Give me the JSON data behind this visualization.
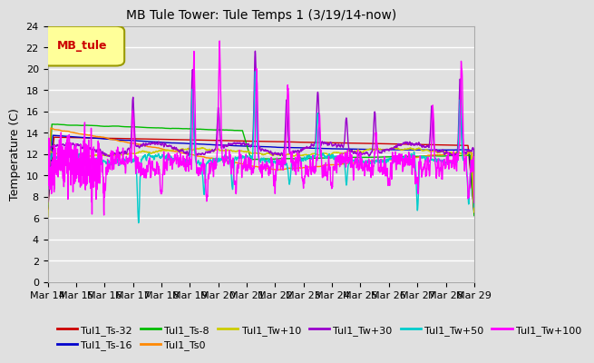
{
  "title": "MB Tule Tower: Tule Temps 1 (3/19/14-now)",
  "ylabel": "Temperature (C)",
  "ylim": [
    0,
    24
  ],
  "yticks": [
    0,
    2,
    4,
    6,
    8,
    10,
    12,
    14,
    16,
    18,
    20,
    22,
    24
  ],
  "x_label_dates": [
    "Mar 14",
    "Mar 15",
    "Mar 16",
    "Mar 17",
    "Mar 18",
    "Mar 19",
    "Mar 20",
    "Mar 21",
    "Mar 22",
    "Mar 23",
    "Mar 24",
    "Mar 25",
    "Mar 26",
    "Mar 27",
    "Mar 28",
    "Mar 29"
  ],
  "background_color": "#e0e0e0",
  "plot_bg_color": "#e0e0e0",
  "grid_color": "#ffffff",
  "series": [
    {
      "name": "Tul1_Ts-32",
      "color": "#cc0000"
    },
    {
      "name": "Tul1_Ts-16",
      "color": "#0000cc"
    },
    {
      "name": "Tul1_Ts-8",
      "color": "#00bb00"
    },
    {
      "name": "Tul1_Ts0",
      "color": "#ff8800"
    },
    {
      "name": "Tul1_Tw+10",
      "color": "#cccc00"
    },
    {
      "name": "Tul1_Tw+30",
      "color": "#9900cc"
    },
    {
      "name": "Tul1_Tw+50",
      "color": "#00cccc"
    },
    {
      "name": "Tul1_Tw+100",
      "color": "#ff00ff"
    }
  ],
  "legend_box_color": "#ffff99",
  "legend_box_edge": "#999900",
  "legend_label": "MB_tule",
  "legend_label_color": "#cc0000"
}
